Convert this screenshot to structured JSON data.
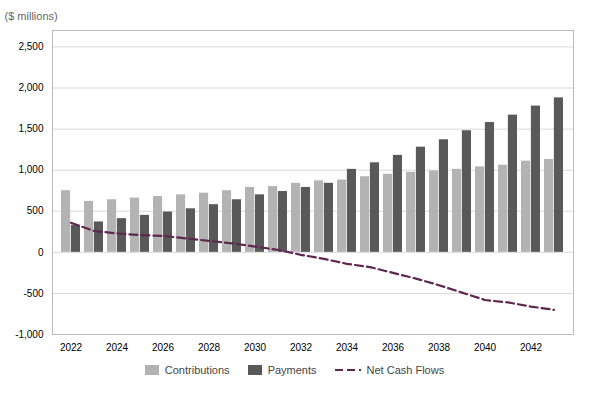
{
  "chart_data": {
    "type": "bar",
    "ylabel": "($ millions)",
    "categories": [
      "2022",
      null,
      "2024",
      null,
      "2026",
      null,
      "2028",
      null,
      "2030",
      null,
      "2032",
      null,
      "2034",
      null,
      "2036",
      null,
      "2038",
      null,
      "2040",
      null,
      "2042",
      null
    ],
    "series": [
      {
        "name": "Contributions",
        "type": "bar",
        "color": "#b3b3b3",
        "values": [
          750,
          620,
          640,
          660,
          680,
          700,
          720,
          750,
          790,
          800,
          840,
          870,
          880,
          920,
          950,
          975,
          990,
          1010,
          1040,
          1060,
          1110,
          1130
        ]
      },
      {
        "name": "Payments",
        "type": "bar",
        "color": "#595959",
        "values": [
          330,
          370,
          410,
          450,
          490,
          530,
          580,
          640,
          700,
          740,
          790,
          840,
          1010,
          1090,
          1180,
          1280,
          1370,
          1480,
          1580,
          1670,
          1780,
          1880
        ]
      },
      {
        "name": "Net Cash Flows",
        "type": "line",
        "color": "#5e2750",
        "line_style": "dashed",
        "values": [
          360,
          260,
          230,
          210,
          200,
          170,
          140,
          110,
          70,
          30,
          -30,
          -80,
          -140,
          -180,
          -250,
          -320,
          -400,
          -490,
          -580,
          -610,
          -660,
          -700
        ]
      }
    ],
    "ylim": [
      -1000,
      2700
    ],
    "yticks": [
      {
        "value": -1000,
        "label": "-1,000"
      },
      -500,
      0,
      500,
      {
        "value": 1000,
        "label": "1,000"
      },
      {
        "value": 1500,
        "label": "1,500"
      },
      {
        "value": 2000,
        "label": "2,000"
      },
      {
        "value": 2500,
        "label": "2,500"
      }
    ],
    "grid": true,
    "legend": "bottom"
  }
}
